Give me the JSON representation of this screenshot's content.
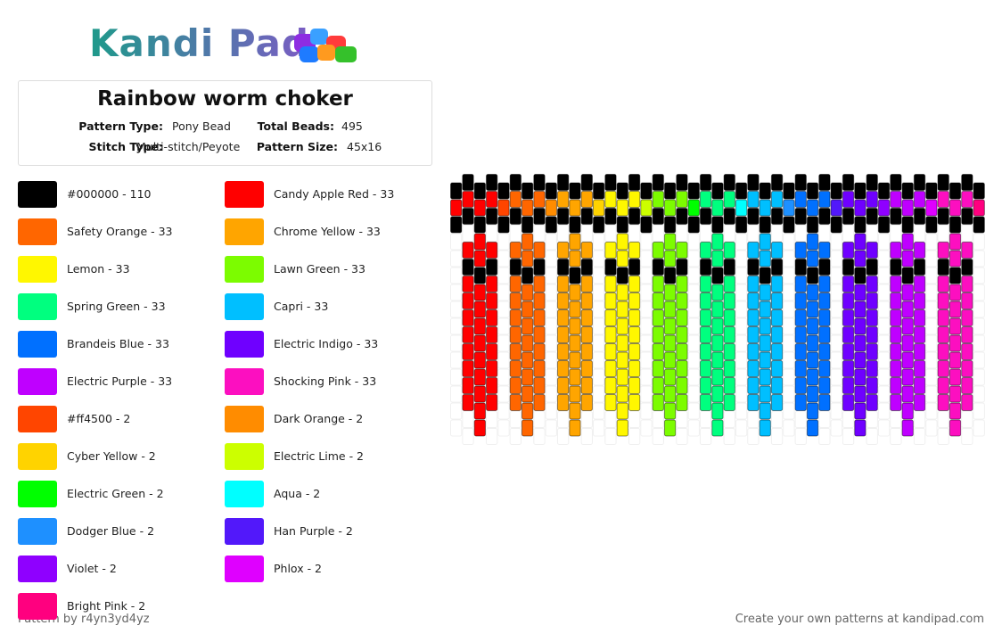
{
  "logo": "Kandi Pad",
  "header": {
    "title": "Rainbow worm choker",
    "info": [
      {
        "label": "Pattern Type:",
        "value": "Pony Bead"
      },
      {
        "label": "Total Beads:",
        "value": "495"
      },
      {
        "label": "Stitch Type:",
        "value": "Multi-stitch/Peyote"
      },
      {
        "label": "Pattern Size:",
        "value": "45x16"
      }
    ]
  },
  "colors": [
    {
      "label": "#000000 - 110",
      "color": "#000000"
    },
    {
      "label": "Candy Apple Red - 33",
      "color": "#ff0000"
    },
    {
      "label": "Safety Orange - 33",
      "color": "#ff6600"
    },
    {
      "label": "Chrome Yellow - 33",
      "color": "#ffa500"
    },
    {
      "label": "Lemon - 33",
      "color": "#fff700"
    },
    {
      "label": "Lawn Green - 33",
      "color": "#7cfc00"
    },
    {
      "label": "Spring Green - 33",
      "color": "#00ff7f"
    },
    {
      "label": "Capri - 33",
      "color": "#00bfff"
    },
    {
      "label": "Brandeis Blue - 33",
      "color": "#0070ff"
    },
    {
      "label": "Electric Indigo - 33",
      "color": "#6f00ff"
    },
    {
      "label": "Electric Purple - 33",
      "color": "#bf00ff"
    },
    {
      "label": "Shocking Pink - 33",
      "color": "#fc0fc0"
    },
    {
      "label": "#ff4500 - 2",
      "color": "#ff4500"
    },
    {
      "label": "Dark Orange - 2",
      "color": "#ff8c00"
    },
    {
      "label": "Cyber Yellow - 2",
      "color": "#ffd300"
    },
    {
      "label": "Electric Lime - 2",
      "color": "#ccff00"
    },
    {
      "label": "Electric Green - 2",
      "color": "#00ff00"
    },
    {
      "label": "Aqua - 2",
      "color": "#00ffff"
    },
    {
      "label": "Dodger Blue - 2",
      "color": "#1e90ff"
    },
    {
      "label": "Han Purple - 2",
      "color": "#5218fa"
    },
    {
      "label": "Violet - 2",
      "color": "#8f00ff"
    },
    {
      "label": "Phlox - 2",
      "color": "#df00ff"
    },
    {
      "label": "Bright Pink - 2",
      "color": "#ff007f"
    }
  ],
  "footer": {
    "credit": "Pattern by r4yn3yd4yz",
    "link": "Create your own patterns at kandipad.com"
  }
}
